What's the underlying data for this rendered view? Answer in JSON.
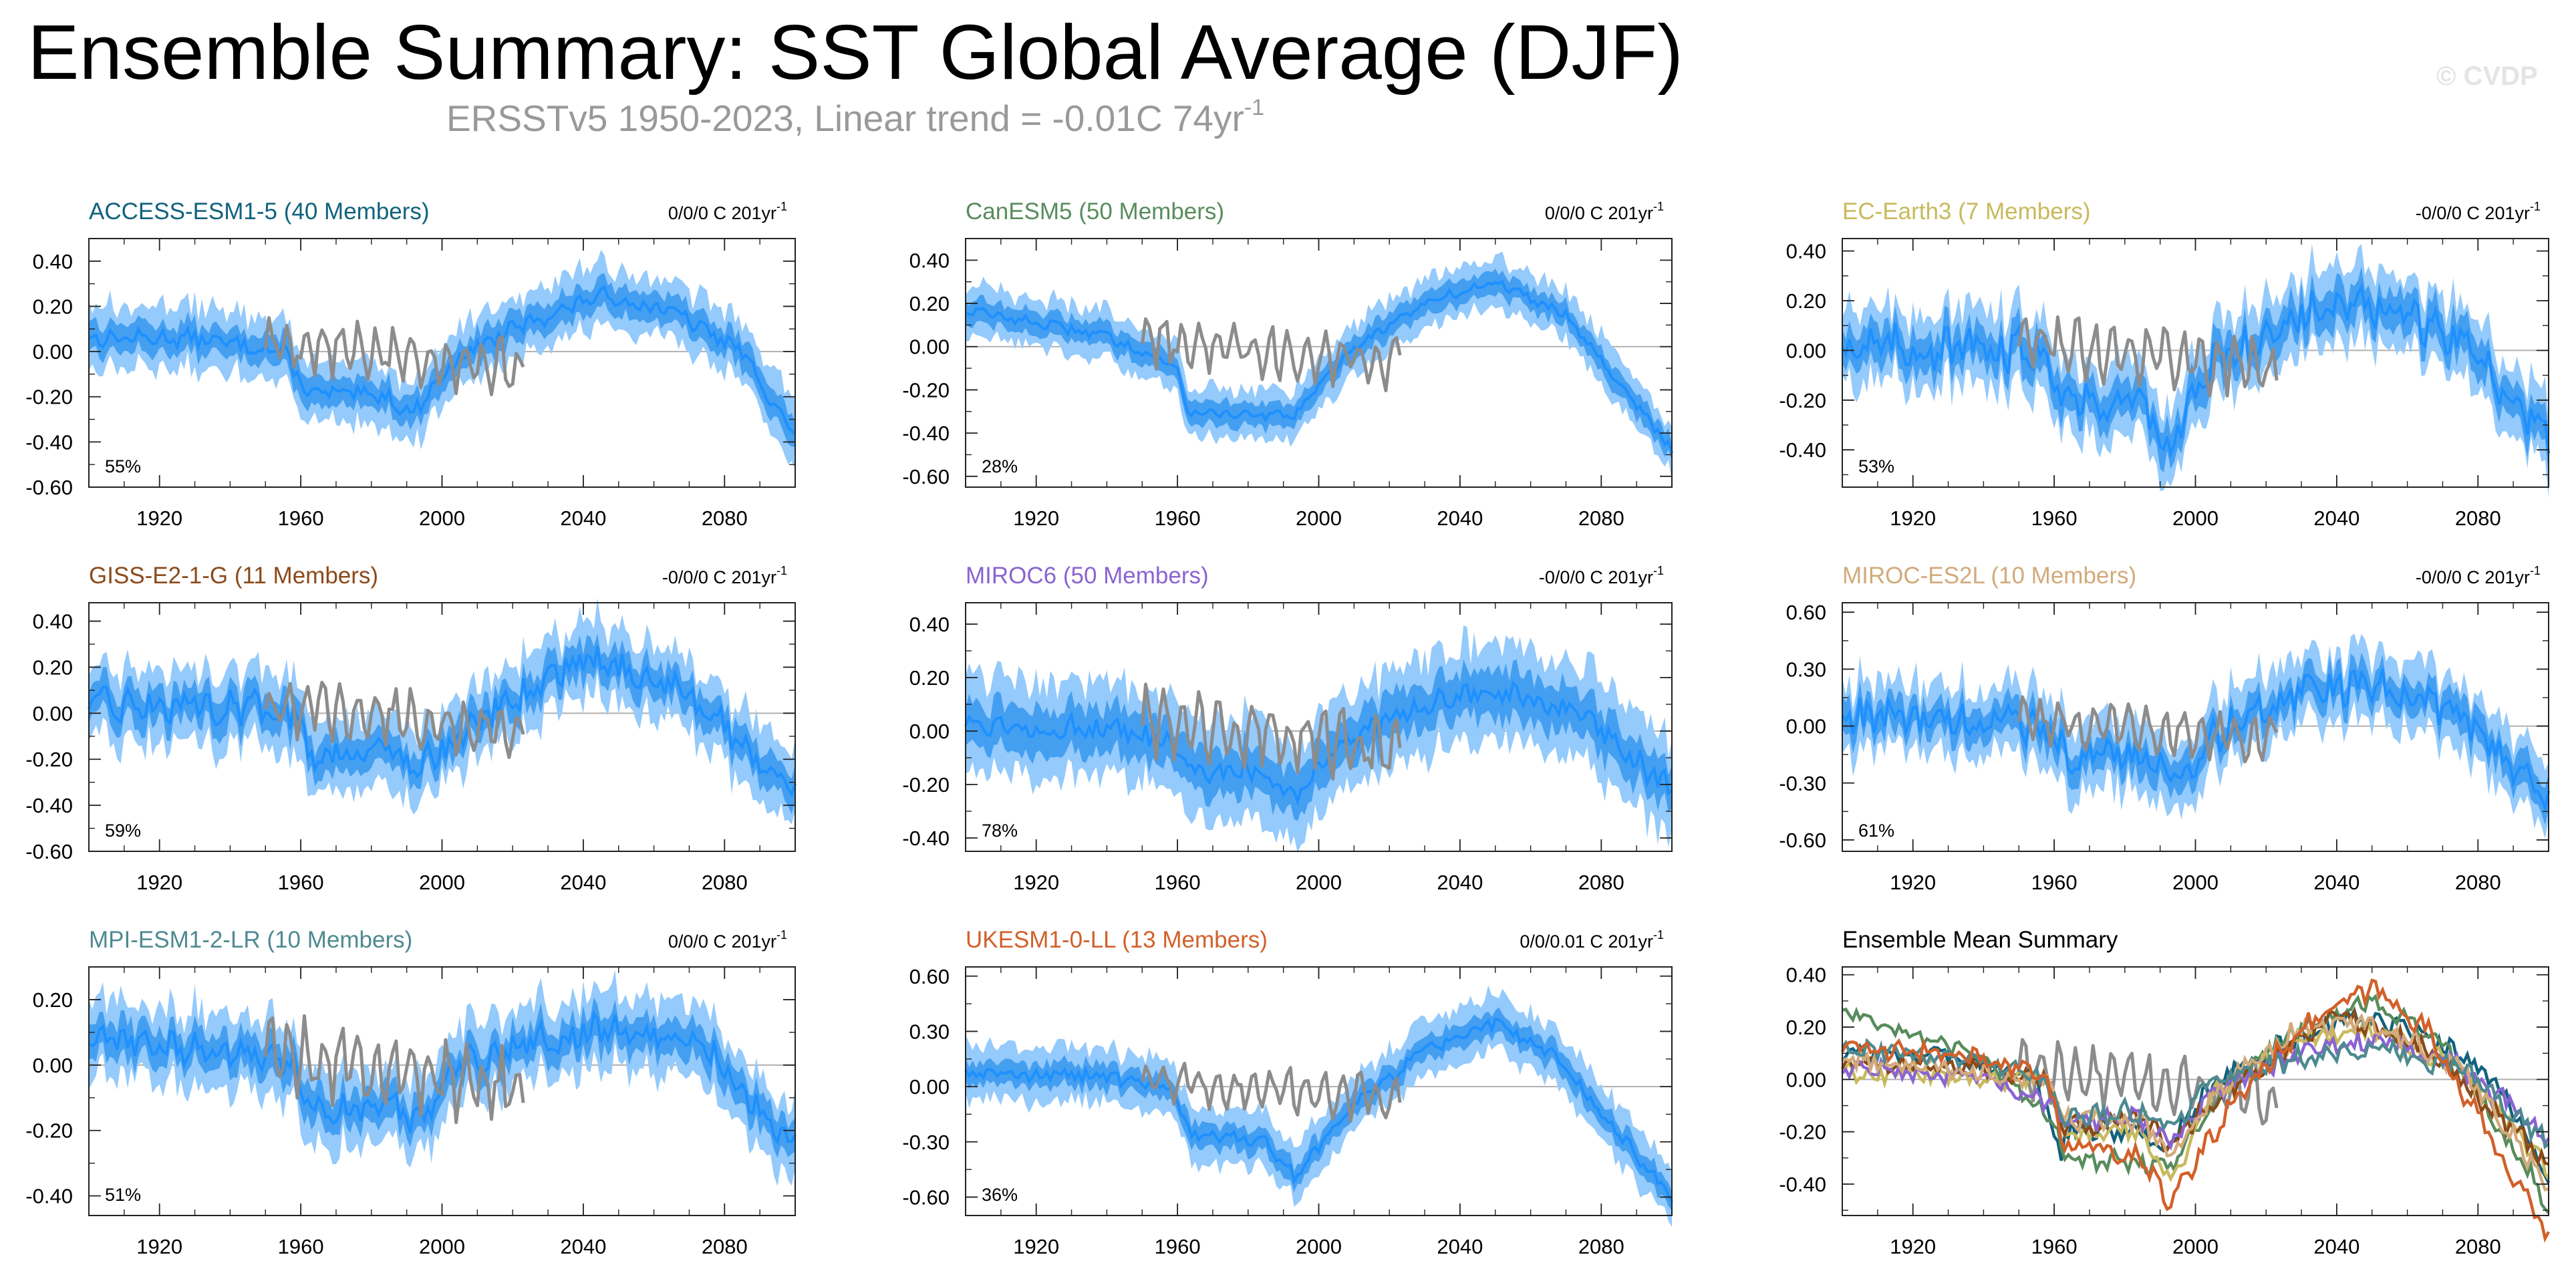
{
  "title": "Ensemble Summary: SST Global Average (DJF)",
  "subtitle": {
    "text": "ERSSTv5 1950-2023, Linear trend = -0.01C 74yr",
    "sup": "-1"
  },
  "watermark": "© CVDP",
  "colors": {
    "ensemble_mean": "#1e90ff",
    "inner_band": "#3b9af0",
    "outer_band": "#94cafc",
    "observation": "#8c8c8c",
    "zero_line": "#b0b0b0",
    "axis": "#222222"
  },
  "shared": {
    "x_range": [
      1900,
      2100
    ],
    "x_ticks": [
      "1920",
      "1960",
      "2000",
      "2040",
      "2080"
    ],
    "x_tick_values": [
      1920,
      1960,
      2000,
      2040,
      2080
    ],
    "observation_years": [
      1950,
      2023
    ]
  },
  "chart_data": [
    {
      "type": "line",
      "title": "ACCESS-ESM1-5 (40 Members)",
      "title_color": "#11627d",
      "trend_label": "0/0/0 C 201yr",
      "trend_sup": "-1",
      "percent_label": "55%",
      "ylim": [
        -0.6,
        0.5
      ],
      "y_ticks": [
        "0.40",
        "0.20",
        "0.00",
        "-0.20",
        "-0.40",
        "-0.60"
      ],
      "y_tick_values": [
        0.4,
        0.2,
        0.0,
        -0.2,
        -0.4,
        -0.6
      ],
      "mean_knots": [
        [
          1900,
          0.06
        ],
        [
          1930,
          0.06
        ],
        [
          1955,
          0.0
        ],
        [
          1962,
          -0.18
        ],
        [
          1985,
          -0.2
        ],
        [
          1991,
          -0.28
        ],
        [
          2005,
          -0.02
        ],
        [
          2020,
          0.1
        ],
        [
          2045,
          0.25
        ],
        [
          2065,
          0.18
        ],
        [
          2085,
          0.0
        ],
        [
          2100,
          -0.38
        ]
      ],
      "spread_inner": 0.06,
      "spread_outer": 0.12,
      "noise": 0.03
    },
    {
      "type": "line",
      "title": "CanESM5 (50 Members)",
      "title_color": "#588c5c",
      "trend_label": "0/0/0 C 201yr",
      "trend_sup": "-1",
      "percent_label": "28%",
      "ylim": [
        -0.65,
        0.5
      ],
      "y_ticks": [
        "0.40",
        "0.20",
        "0.00",
        "-0.20",
        "-0.40",
        "-0.60"
      ],
      "y_tick_values": [
        0.4,
        0.2,
        0.0,
        -0.2,
        -0.4,
        -0.6
      ],
      "mean_knots": [
        [
          1900,
          0.17
        ],
        [
          1940,
          0.05
        ],
        [
          1960,
          -0.1
        ],
        [
          1963,
          -0.3
        ],
        [
          1985,
          -0.32
        ],
        [
          1993,
          -0.32
        ],
        [
          2010,
          0.0
        ],
        [
          2030,
          0.2
        ],
        [
          2050,
          0.3
        ],
        [
          2070,
          0.15
        ],
        [
          2100,
          -0.48
        ]
      ],
      "spread_inner": 0.05,
      "spread_outer": 0.1,
      "noise": 0.02
    },
    {
      "type": "line",
      "title": "EC-Earth3 (7 Members)",
      "title_color": "#c8b95c",
      "trend_label": "-0/0/0 C 201yr",
      "trend_sup": "-1",
      "percent_label": "53%",
      "ylim": [
        -0.55,
        0.45
      ],
      "y_ticks": [
        "0.40",
        "0.20",
        "0.00",
        "-0.20",
        "-0.40"
      ],
      "y_tick_values": [
        0.4,
        0.2,
        0.0,
        -0.2,
        -0.4
      ],
      "mean_knots": [
        [
          1900,
          0.02
        ],
        [
          1940,
          0.0
        ],
        [
          1958,
          0.0
        ],
        [
          1963,
          -0.2
        ],
        [
          1985,
          -0.2
        ],
        [
          1993,
          -0.4
        ],
        [
          2005,
          -0.05
        ],
        [
          2030,
          0.15
        ],
        [
          2050,
          0.18
        ],
        [
          2075,
          0.05
        ],
        [
          2100,
          -0.35
        ]
      ],
      "spread_inner": 0.07,
      "spread_outer": 0.13,
      "noise": 0.07
    },
    {
      "type": "line",
      "title": "GISS-E2-1-G (11 Members)",
      "title_color": "#8b4a1a",
      "trend_label": "-0/0/0 C 201yr",
      "trend_sup": "-1",
      "percent_label": "59%",
      "ylim": [
        -0.6,
        0.48
      ],
      "y_ticks": [
        "0.40",
        "0.20",
        "0.00",
        "-0.20",
        "-0.40",
        "-0.60"
      ],
      "y_tick_values": [
        0.4,
        0.2,
        0.0,
        -0.2,
        -0.4,
        -0.6
      ],
      "mean_knots": [
        [
          1900,
          0.04
        ],
        [
          1940,
          0.03
        ],
        [
          1958,
          0.0
        ],
        [
          1963,
          -0.18
        ],
        [
          1985,
          -0.15
        ],
        [
          1993,
          -0.25
        ],
        [
          2005,
          -0.08
        ],
        [
          2020,
          0.05
        ],
        [
          2040,
          0.25
        ],
        [
          2065,
          0.12
        ],
        [
          2100,
          -0.32
        ]
      ],
      "spread_inner": 0.07,
      "spread_outer": 0.14,
      "noise": 0.06
    },
    {
      "type": "line",
      "title": "MIROC6 (50 Members)",
      "title_color": "#8a63d2",
      "trend_label": "-0/0/0 C 201yr",
      "trend_sup": "-1",
      "percent_label": "78%",
      "ylim": [
        -0.45,
        0.48
      ],
      "y_ticks": [
        "0.40",
        "0.20",
        "0.00",
        "-0.20",
        "-0.40"
      ],
      "y_tick_values": [
        0.4,
        0.2,
        0.0,
        -0.2,
        -0.4
      ],
      "mean_knots": [
        [
          1900,
          0.03
        ],
        [
          1940,
          0.0
        ],
        [
          1958,
          -0.05
        ],
        [
          1963,
          -0.15
        ],
        [
          1985,
          -0.15
        ],
        [
          1993,
          -0.25
        ],
        [
          2005,
          -0.05
        ],
        [
          2030,
          0.1
        ],
        [
          2050,
          0.15
        ],
        [
          2075,
          0.05
        ],
        [
          2100,
          -0.22
        ]
      ],
      "spread_inner": 0.08,
      "spread_outer": 0.16,
      "noise": 0.04
    },
    {
      "type": "line",
      "title": "MIROC-ES2L (10 Members)",
      "title_color": "#d2aa7a",
      "trend_label": "-0/0/0 C 201yr",
      "trend_sup": "-1",
      "percent_label": "61%",
      "ylim": [
        -0.66,
        0.65
      ],
      "y_ticks": [
        "0.60",
        "0.30",
        "0.00",
        "-0.30",
        "-0.60"
      ],
      "y_tick_values": [
        0.6,
        0.3,
        0.0,
        -0.3,
        -0.6
      ],
      "mean_knots": [
        [
          1900,
          0.05
        ],
        [
          1940,
          0.02
        ],
        [
          1958,
          0.0
        ],
        [
          1963,
          -0.15
        ],
        [
          1985,
          -0.15
        ],
        [
          1993,
          -0.3
        ],
        [
          2005,
          -0.05
        ],
        [
          2030,
          0.2
        ],
        [
          2050,
          0.22
        ],
        [
          2075,
          0.05
        ],
        [
          2100,
          -0.4
        ]
      ],
      "spread_inner": 0.08,
      "spread_outer": 0.16,
      "noise": 0.08
    },
    {
      "type": "line",
      "title": "MPI-ESM1-2-LR (10 Members)",
      "title_color": "#4d8a90",
      "trend_label": "0/0/0 C 201yr",
      "trend_sup": "-1",
      "percent_label": "51%",
      "ylim": [
        -0.46,
        0.3
      ],
      "y_ticks": [
        "0.20",
        "0.00",
        "-0.20",
        "-0.40"
      ],
      "y_tick_values": [
        0.2,
        0.0,
        -0.2,
        -0.4
      ],
      "mean_knots": [
        [
          1900,
          0.08
        ],
        [
          1940,
          0.04
        ],
        [
          1958,
          0.0
        ],
        [
          1963,
          -0.15
        ],
        [
          1985,
          -0.12
        ],
        [
          1993,
          -0.18
        ],
        [
          2005,
          0.0
        ],
        [
          2030,
          0.08
        ],
        [
          2050,
          0.12
        ],
        [
          2075,
          0.05
        ],
        [
          2100,
          -0.25
        ]
      ],
      "spread_inner": 0.05,
      "spread_outer": 0.1,
      "noise": 0.04
    },
    {
      "type": "line",
      "title": "UKESM1-0-LL (13 Members)",
      "title_color": "#d2602a",
      "trend_label": "0/0/0.01 C 201yr",
      "trend_sup": "-1",
      "percent_label": "36%",
      "ylim": [
        -0.7,
        0.65
      ],
      "y_ticks": [
        "0.60",
        "0.30",
        "0.00",
        "-0.30",
        "-0.60"
      ],
      "y_tick_values": [
        0.6,
        0.3,
        0.0,
        -0.3,
        -0.6
      ],
      "mean_knots": [
        [
          1900,
          0.08
        ],
        [
          1940,
          0.05
        ],
        [
          1958,
          0.0
        ],
        [
          1963,
          -0.25
        ],
        [
          1985,
          -0.3
        ],
        [
          1993,
          -0.48
        ],
        [
          2010,
          -0.1
        ],
        [
          2030,
          0.2
        ],
        [
          2050,
          0.35
        ],
        [
          2065,
          0.2
        ],
        [
          2100,
          -0.6
        ]
      ],
      "spread_inner": 0.06,
      "spread_outer": 0.13,
      "noise": 0.03
    },
    {
      "type": "line",
      "title": "Ensemble Mean Summary",
      "title_color": "#000000",
      "summary": true,
      "ylim": [
        -0.52,
        0.43
      ],
      "y_ticks": [
        "0.40",
        "0.20",
        "0.00",
        "-0.20",
        "-0.40"
      ],
      "y_tick_values": [
        0.4,
        0.2,
        0.0,
        -0.2,
        -0.4
      ]
    }
  ]
}
